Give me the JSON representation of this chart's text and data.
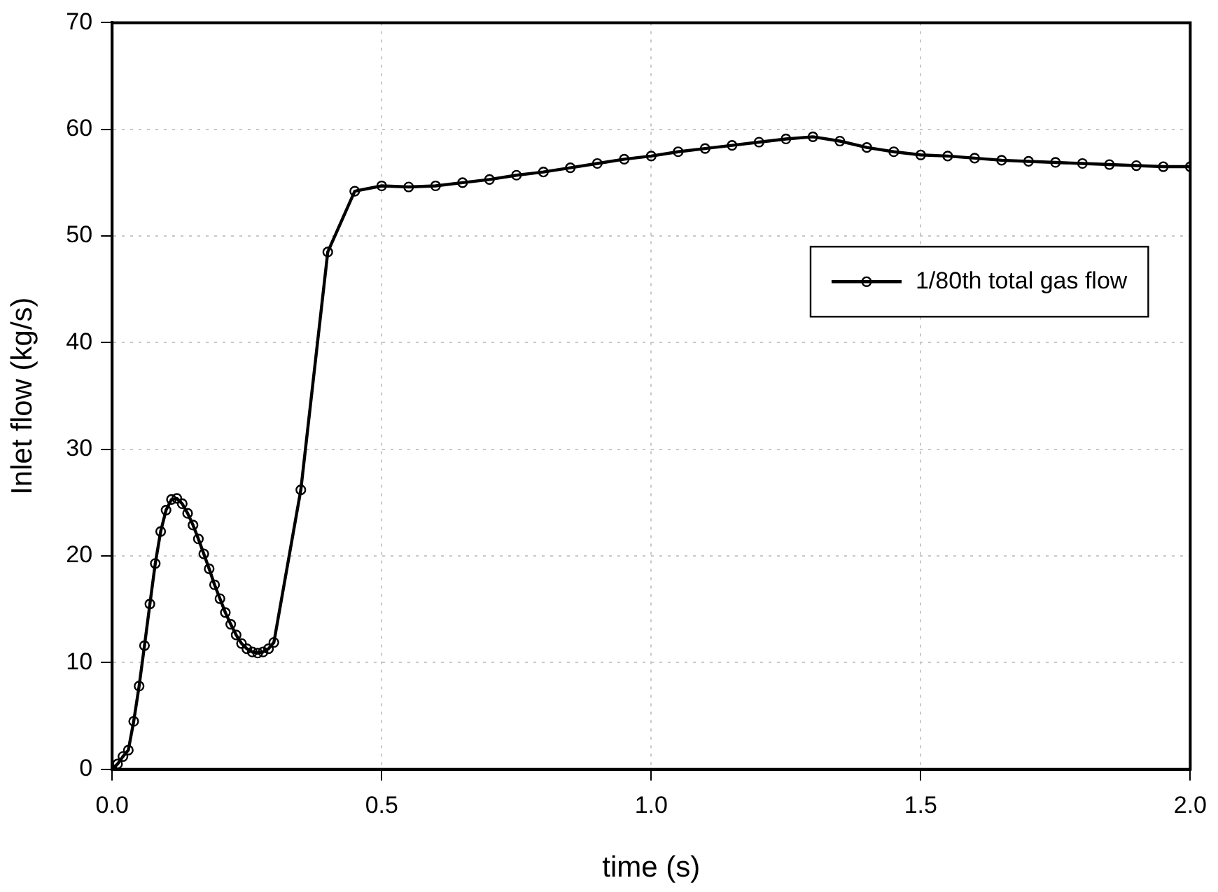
{
  "chart_data": {
    "type": "line",
    "xlabel": "time (s)",
    "ylabel": "Inlet flow (kg/s)",
    "x": [
      0,
      0.01,
      0.02,
      0.03,
      0.04,
      0.05,
      0.06,
      0.07,
      0.08,
      0.09,
      0.1,
      0.11,
      0.12,
      0.13,
      0.14,
      0.15,
      0.16,
      0.17,
      0.18,
      0.19,
      0.2,
      0.21,
      0.22,
      0.23,
      0.24,
      0.25,
      0.26,
      0.27,
      0.28,
      0.29,
      0.3,
      0.35,
      0.4,
      0.45,
      0.5,
      0.55,
      0.6,
      0.65,
      0.7,
      0.75,
      0.8,
      0.85,
      0.9,
      0.95,
      1.0,
      1.05,
      1.1,
      1.15,
      1.2,
      1.25,
      1.3,
      1.35,
      1.4,
      1.45,
      1.5,
      1.55,
      1.6,
      1.65,
      1.7,
      1.75,
      1.8,
      1.85,
      1.9,
      1.95,
      2.0
    ],
    "series": [
      {
        "name": "1/80th total gas flow",
        "color": "#000000",
        "values": [
          0,
          0.5,
          1.2,
          1.8,
          4.5,
          7.8,
          11.6,
          15.5,
          19.3,
          22.3,
          24.3,
          25.3,
          25.4,
          24.9,
          24.0,
          22.9,
          21.6,
          20.2,
          18.8,
          17.3,
          16.0,
          14.7,
          13.6,
          12.6,
          11.8,
          11.3,
          11.0,
          10.9,
          11.0,
          11.3,
          11.9,
          26.2,
          48.5,
          54.2,
          54.7,
          54.6,
          54.7,
          55.0,
          55.3,
          55.7,
          56.0,
          56.4,
          56.8,
          57.2,
          57.5,
          57.9,
          58.2,
          58.5,
          58.8,
          59.1,
          59.3,
          58.9,
          58.3,
          57.9,
          57.6,
          57.5,
          57.3,
          57.1,
          57.0,
          56.9,
          56.8,
          56.7,
          56.6,
          56.5,
          56.5
        ]
      }
    ],
    "xlim": [
      0,
      2
    ],
    "xticks": [
      {
        "value": 0,
        "label": "0.0"
      },
      {
        "value": 0.5,
        "label": "0.5"
      },
      {
        "value": 1,
        "label": "1.0"
      },
      {
        "value": 1.5,
        "label": "1.5"
      },
      {
        "value": 2,
        "label": "2.0"
      }
    ],
    "ylim": [
      0,
      70
    ],
    "yticks": [
      0,
      10,
      20,
      30,
      40,
      50,
      60,
      70
    ],
    "grid": true,
    "legend": "right",
    "marker": "circle",
    "line_style": "solid"
  }
}
